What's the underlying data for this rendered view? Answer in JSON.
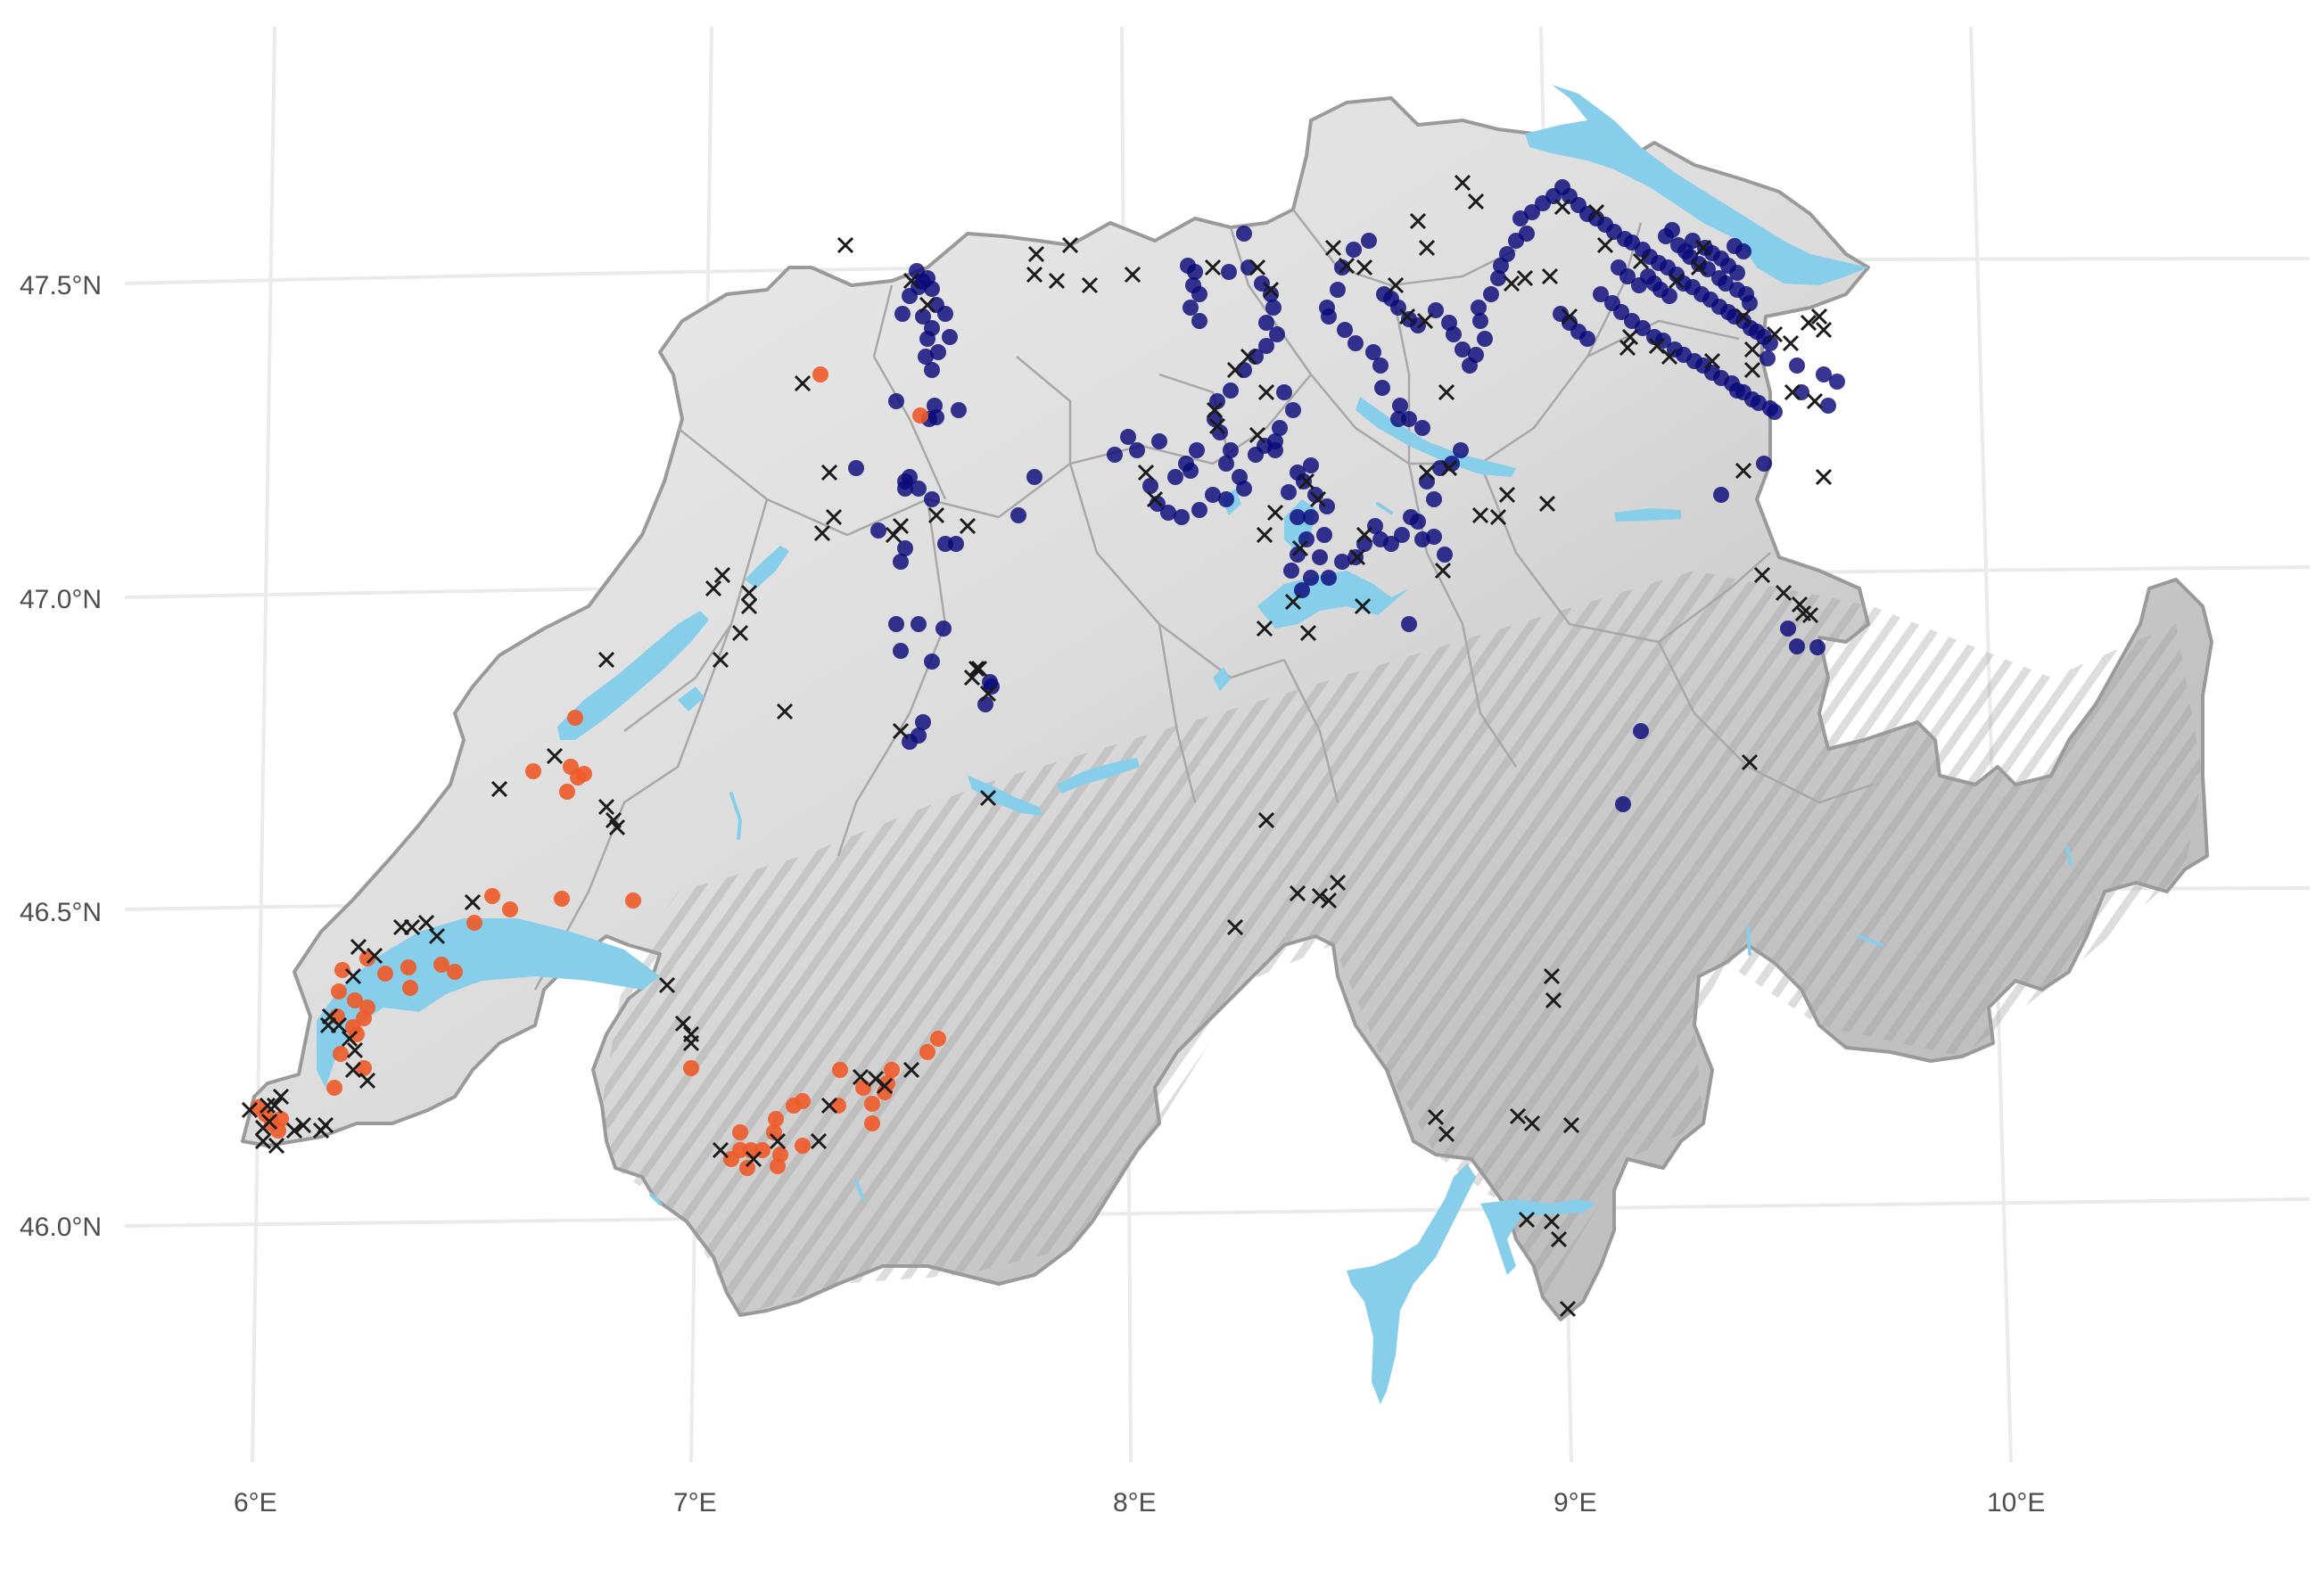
{
  "map": {
    "lat_labels": [
      "47.5°N",
      "47.0°N",
      "46.5°N",
      "46.0°N"
    ],
    "lon_labels": [
      "6°E",
      "7°E",
      "8°E",
      "9°E",
      "10°E"
    ],
    "colors": {
      "background": "#ffffff",
      "grid": "#ebebeb",
      "relief_light": "#f2f2f2",
      "relief_dark": "#8c8c8c",
      "border": "#9a9a9a",
      "lake": "#87ceeb",
      "series_dark_blue": "#0a0a7a",
      "series_orange": "#f05a28",
      "series_cross": "#1a1a1a"
    },
    "symbols": [
      "dark-blue-dot",
      "orange-dot",
      "black-cross"
    ]
  }
}
